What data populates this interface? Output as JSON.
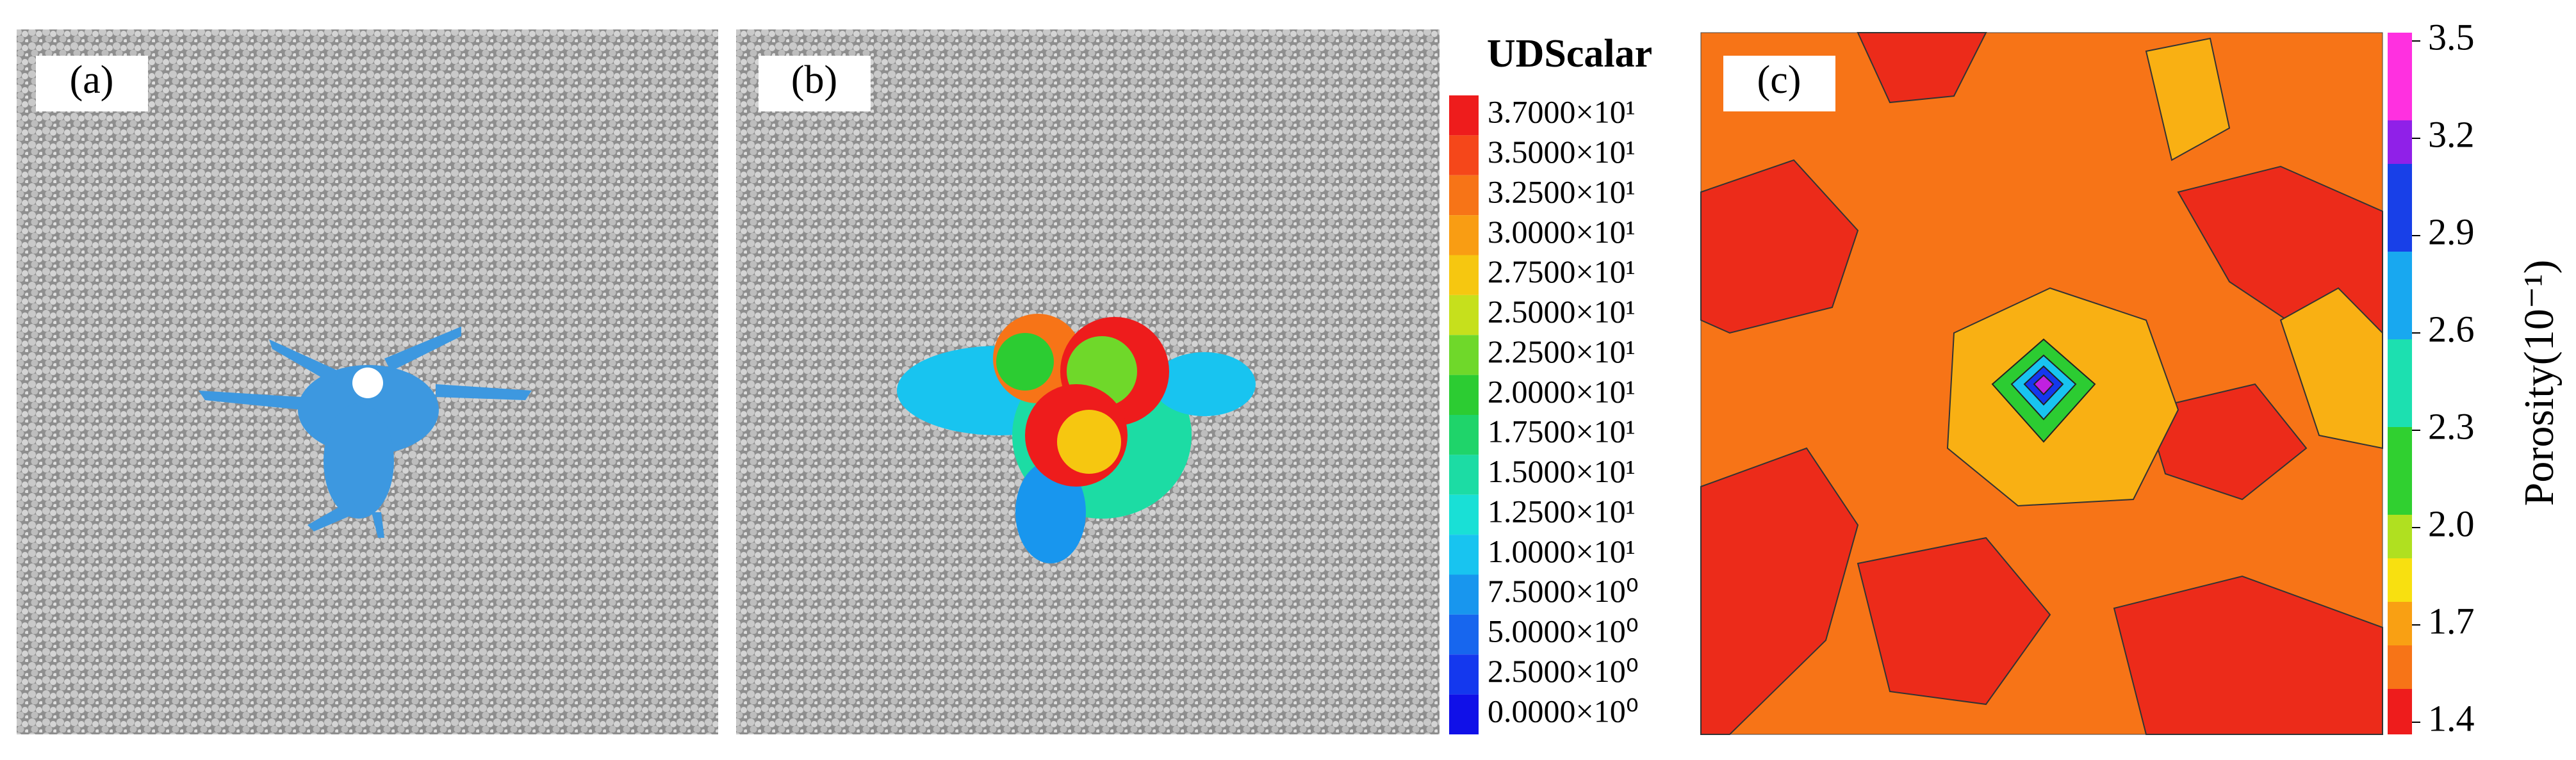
{
  "panels": [
    {
      "label": "(a)"
    },
    {
      "label": "(b)"
    },
    {
      "label": "(c)"
    }
  ],
  "udscalar_legend": {
    "title": "UDScalar",
    "entries": [
      {
        "label": "3.7000×10¹",
        "color": "#ee1c1c"
      },
      {
        "label": "3.5000×10¹",
        "color": "#f5471a"
      },
      {
        "label": "3.2500×10¹",
        "color": "#f77417"
      },
      {
        "label": "3.0000×10¹",
        "color": "#f99d13"
      },
      {
        "label": "2.7500×10¹",
        "color": "#f6c710"
      },
      {
        "label": "2.5000×10¹",
        "color": "#c6e01c"
      },
      {
        "label": "2.2500×10¹",
        "color": "#6fd82a"
      },
      {
        "label": "2.0000×10¹",
        "color": "#2ccc32"
      },
      {
        "label": "1.7500×10¹",
        "color": "#1fd46a"
      },
      {
        "label": "1.5000×10¹",
        "color": "#1cdca4"
      },
      {
        "label": "1.2500×10¹",
        "color": "#19e0d6"
      },
      {
        "label": "1.0000×10¹",
        "color": "#18c4f0"
      },
      {
        "label": "7.5000×10⁰",
        "color": "#1896ee"
      },
      {
        "label": "5.0000×10⁰",
        "color": "#1766ee"
      },
      {
        "label": "2.5000×10⁰",
        "color": "#1438ee"
      },
      {
        "label": "0.0000×10⁰",
        "color": "#1010e8"
      }
    ]
  },
  "porosity_colorbar": {
    "title": "Porosity(10⁻¹)",
    "ticks": [
      "3.5",
      "3.2",
      "2.9",
      "2.6",
      "2.3",
      "2.0",
      "1.7",
      "1.4"
    ]
  }
}
